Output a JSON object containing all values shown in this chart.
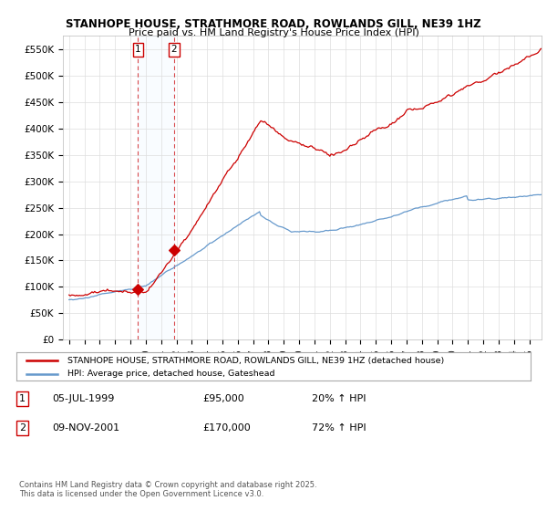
{
  "title": "STANHOPE HOUSE, STRATHMORE ROAD, ROWLANDS GILL, NE39 1HZ",
  "subtitle": "Price paid vs. HM Land Registry's House Price Index (HPI)",
  "legend_label_red": "STANHOPE HOUSE, STRATHMORE ROAD, ROWLANDS GILL, NE39 1HZ (detached house)",
  "legend_label_blue": "HPI: Average price, detached house, Gateshead",
  "transaction1_date": "05-JUL-1999",
  "transaction1_price": "£95,000",
  "transaction1_hpi": "20% ↑ HPI",
  "transaction2_date": "09-NOV-2001",
  "transaction2_price": "£170,000",
  "transaction2_hpi": "72% ↑ HPI",
  "footnote": "Contains HM Land Registry data © Crown copyright and database right 2025.\nThis data is licensed under the Open Government Licence v3.0.",
  "ylim": [
    0,
    575000
  ],
  "yticks": [
    0,
    50000,
    100000,
    150000,
    200000,
    250000,
    300000,
    350000,
    400000,
    450000,
    500000,
    550000
  ],
  "ytick_labels": [
    "£0",
    "£50K",
    "£100K",
    "£150K",
    "£200K",
    "£250K",
    "£300K",
    "£350K",
    "£400K",
    "£450K",
    "£500K",
    "£550K"
  ],
  "background_color": "#ffffff",
  "grid_color": "#dddddd",
  "red_color": "#cc0000",
  "blue_color": "#6699cc",
  "vline_color": "#cc0000",
  "transaction1_x": 1999.5,
  "transaction2_x": 2001.83,
  "transaction1_y": 95000,
  "transaction2_y": 170000,
  "xmin": 1994.6,
  "xmax": 2025.8,
  "span_color": "#ddeeff"
}
